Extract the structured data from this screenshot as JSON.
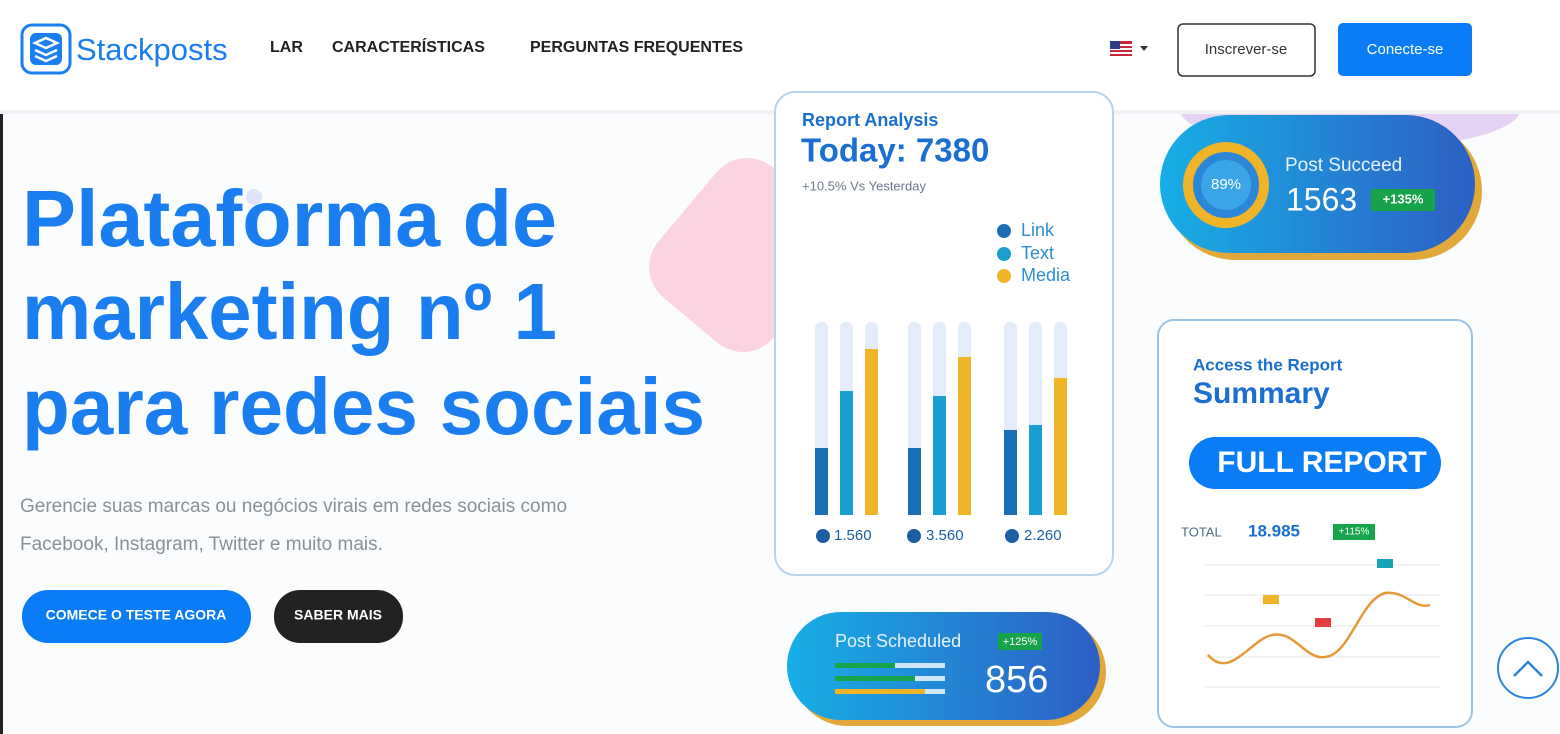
{
  "header": {
    "logo": "Stackposts",
    "nav": [
      "LAR",
      "CARACTERÍSTICAS",
      "PERGUNTAS FREQUENTES"
    ],
    "signup": "Inscrever-se",
    "login": "Conecte-se"
  },
  "hero": {
    "title_lines": [
      "Plataforma de",
      "marketing nº 1",
      "para redes sociais"
    ],
    "subtitle_lines": [
      "Gerencie suas marcas ou negócios virais em redes sociais como",
      "Facebook, Instagram, Twitter e muito mais."
    ],
    "primary_button": "COMECE O TESTE AGORA",
    "secondary_button": "SABER MAIS"
  },
  "report_card": {
    "title": "Report Analysis",
    "today": "Today: 7380",
    "change": "+10.5% Vs Yesterday",
    "legend": [
      "Link",
      "Text",
      "Media"
    ],
    "totals": [
      "1.560",
      "3.560",
      "2.260"
    ]
  },
  "succeed_card": {
    "percent": "89%",
    "label": "Post Succeed",
    "value": "1563",
    "badge": "+135%"
  },
  "summary_card": {
    "kicker": "Access the Report",
    "title": "Summary",
    "button": "FULL REPORT",
    "total_label": "TOTAL",
    "total": "18.985",
    "badge": "+115%"
  },
  "scheduled_card": {
    "label": "Post Scheduled",
    "badge": "+125%",
    "value": "856"
  }
}
